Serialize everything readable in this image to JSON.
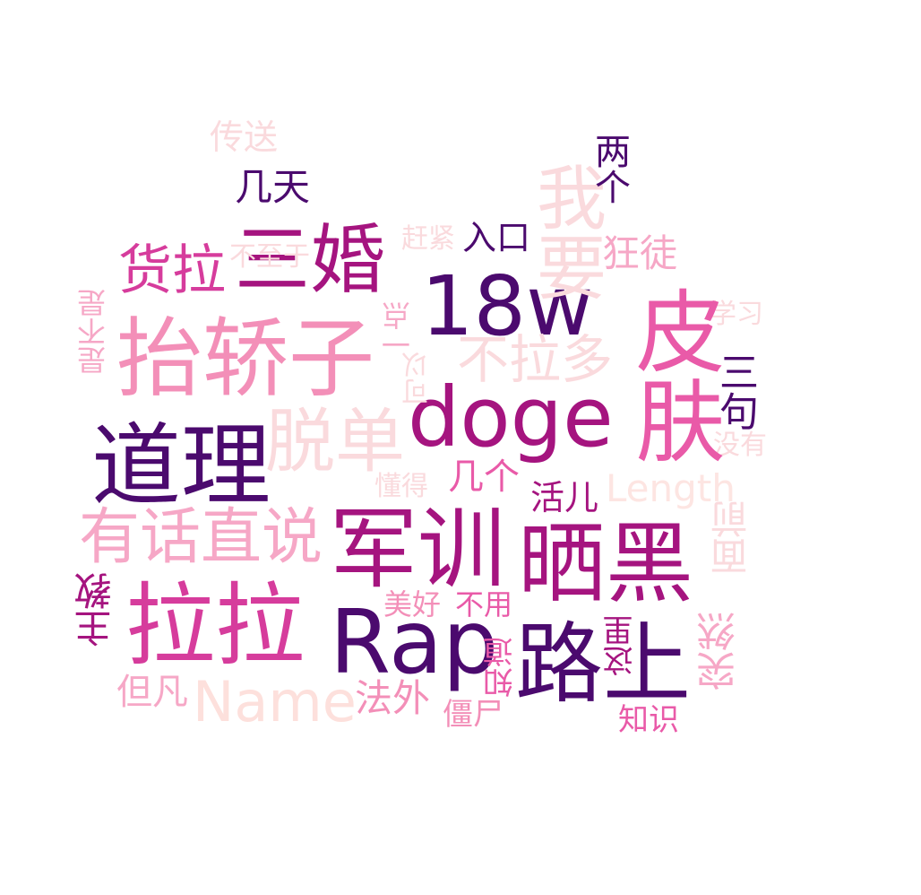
{
  "palette": {
    "dark_purple": "#4b0a6e",
    "magenta": "#a5147f",
    "pink": "#e95aa8",
    "light_pink": "#f6a7c6",
    "pale_pink": "#fadadd",
    "very_pale": "#fde5e2"
  },
  "words": [
    {
      "text": "皮肤",
      "color": "#e95aa8"
    },
    {
      "text": "抬轿子",
      "color": "#f38fb8"
    },
    {
      "text": "doge",
      "color": "#a5147f"
    },
    {
      "text": "Rap",
      "color": "#4b0a6e"
    },
    {
      "text": "18w",
      "color": "#4b0a6e"
    },
    {
      "text": "路上",
      "color": "#4b0a6e"
    },
    {
      "text": "道理",
      "color": "#4b0a6e"
    },
    {
      "text": "军训",
      "color": "#a5147f"
    },
    {
      "text": "晒黑",
      "color": "#a5147f"
    },
    {
      "text": "拉拉",
      "color": "#d63c9c"
    },
    {
      "text": "三婚",
      "color": "#a5147f"
    },
    {
      "text": "我要",
      "color": "#fadadd"
    },
    {
      "text": "脱单",
      "color": "#fadadd"
    },
    {
      "text": "有话直说",
      "color": "#f6a7c6"
    },
    {
      "text": "Name",
      "color": "#fde0dc"
    },
    {
      "text": "不拉多",
      "color": "#fadadd"
    },
    {
      "text": "货拉",
      "color": "#d63c9c"
    },
    {
      "text": "Length",
      "color": "#fde5e2"
    },
    {
      "text": "几天",
      "color": "#4b0a6e"
    },
    {
      "text": "传送",
      "color": "#fadadd"
    },
    {
      "text": "两个",
      "color": "#4b0a6e"
    },
    {
      "text": "入口",
      "color": "#4b0a6e"
    },
    {
      "text": "狂徒",
      "color": "#f6a7c6"
    },
    {
      "text": "赶紧",
      "color": "#fadadd"
    },
    {
      "text": "不至于",
      "color": "#fadadd"
    },
    {
      "text": "是不是",
      "color": "#f6a7c6"
    },
    {
      "text": "一点",
      "color": "#f6a7c6"
    },
    {
      "text": "可以",
      "color": "#fadadd"
    },
    {
      "text": "学习",
      "color": "#fadadd"
    },
    {
      "text": "三句",
      "color": "#4b0a6e"
    },
    {
      "text": "没有",
      "color": "#fadadd"
    },
    {
      "text": "懂得",
      "color": "#fadadd"
    },
    {
      "text": "几个",
      "color": "#e95aa8"
    },
    {
      "text": "活儿",
      "color": "#a5147f"
    },
    {
      "text": "面前",
      "color": "#fadadd"
    },
    {
      "text": "主教",
      "color": "#a5147f"
    },
    {
      "text": "美好",
      "color": "#f38fb8"
    },
    {
      "text": "不用",
      "color": "#e95aa8"
    },
    {
      "text": "突然",
      "color": "#f6a7c6"
    },
    {
      "text": "这里",
      "color": "#a5147f"
    },
    {
      "text": "但凡",
      "color": "#f6a7c6"
    },
    {
      "text": "法外",
      "color": "#f38fb8"
    },
    {
      "text": "僵尸",
      "color": "#f38fb8"
    },
    {
      "text": "知道",
      "color": "#e95aa8"
    },
    {
      "text": "知识",
      "color": "#e95aa8"
    }
  ]
}
